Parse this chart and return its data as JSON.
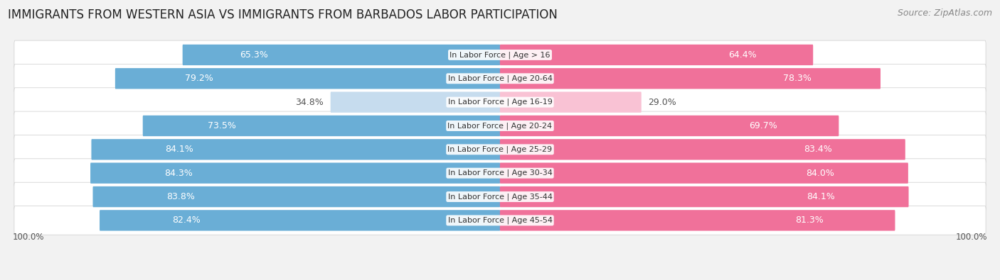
{
  "title": "IMMIGRANTS FROM WESTERN ASIA VS IMMIGRANTS FROM BARBADOS LABOR PARTICIPATION",
  "source": "Source: ZipAtlas.com",
  "categories": [
    "In Labor Force | Age > 16",
    "In Labor Force | Age 20-64",
    "In Labor Force | Age 16-19",
    "In Labor Force | Age 20-24",
    "In Labor Force | Age 25-29",
    "In Labor Force | Age 30-34",
    "In Labor Force | Age 35-44",
    "In Labor Force | Age 45-54"
  ],
  "western_asia": [
    65.3,
    79.2,
    34.8,
    73.5,
    84.1,
    84.3,
    83.8,
    82.4
  ],
  "barbados": [
    64.4,
    78.3,
    29.0,
    69.7,
    83.4,
    84.0,
    84.1,
    81.3
  ],
  "western_asia_color": "#6aaed6",
  "barbados_color": "#f0719a",
  "western_asia_light_color": "#c6dcee",
  "barbados_light_color": "#f9c2d4",
  "bg_color": "#f2f2f2",
  "row_bg_color": "#e8e8e8",
  "title_fontsize": 12,
  "source_fontsize": 9,
  "bar_label_fontsize": 9,
  "category_fontsize": 8,
  "legend_fontsize": 9.5,
  "footer_label": "100.0%",
  "max_value": 100.0,
  "threshold": 50
}
